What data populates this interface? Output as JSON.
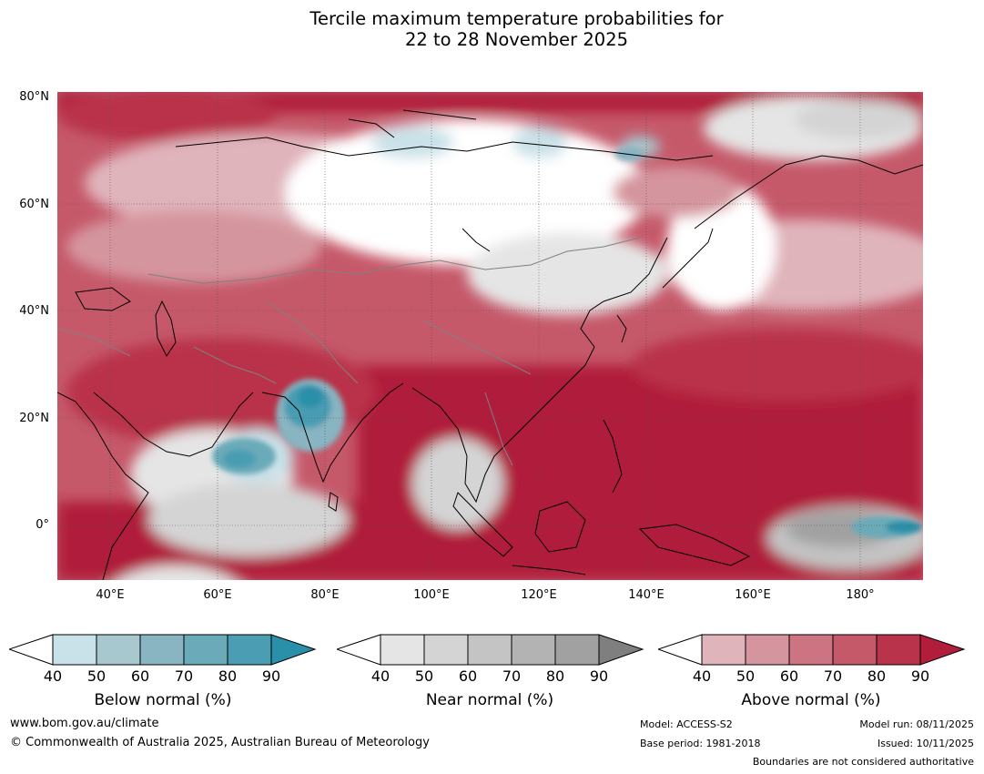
{
  "title": {
    "line1": "Tercile maximum temperature probabilities for",
    "line2": "22 to 28 November 2025"
  },
  "colors": {
    "below": [
      "#c9e1e8",
      "#a6c8ce",
      "#89b4c1",
      "#6aaab9",
      "#4a9db2",
      "#2a8fa8"
    ],
    "near": [
      "#e5e5e5",
      "#d4d4d4",
      "#c4c4c4",
      "#b3b3b3",
      "#a1a1a1",
      "#7f7f7f"
    ],
    "above": [
      "#e0b4bb",
      "#d5959e",
      "#cc7481",
      "#c5596a",
      "#b9334a",
      "#b01e3b"
    ],
    "land_outline": "#000000",
    "border": "#808080"
  },
  "axes": {
    "lat_labels": [
      "80°N",
      "60°N",
      "40°N",
      "20°N",
      "0°"
    ],
    "lon_labels": [
      "40°E",
      "60°E",
      "80°E",
      "100°E",
      "120°E",
      "140°E",
      "160°E",
      "180°"
    ]
  },
  "colorbars": [
    {
      "key": "below",
      "label": "Below normal (%)",
      "ticks": [
        "40",
        "50",
        "60",
        "70",
        "80",
        "90"
      ]
    },
    {
      "key": "near",
      "label": "Near normal (%)",
      "ticks": [
        "40",
        "50",
        "60",
        "70",
        "80",
        "90"
      ]
    },
    {
      "key": "above",
      "label": "Above normal (%)",
      "ticks": [
        "40",
        "50",
        "60",
        "70",
        "80",
        "90"
      ]
    }
  ],
  "footer": {
    "url": "www.bom.gov.au/climate",
    "copyright": "© Commonwealth of Australia 2025, Australian Bureau of Meteorology",
    "model": "Model: ACCESS-S2",
    "base_period": "Base period: 1981-2018",
    "model_run": "Model run: 08/11/2025",
    "issued": "Issued: 10/11/2025",
    "disclaimer": "Boundaries are not considered authoritative"
  }
}
